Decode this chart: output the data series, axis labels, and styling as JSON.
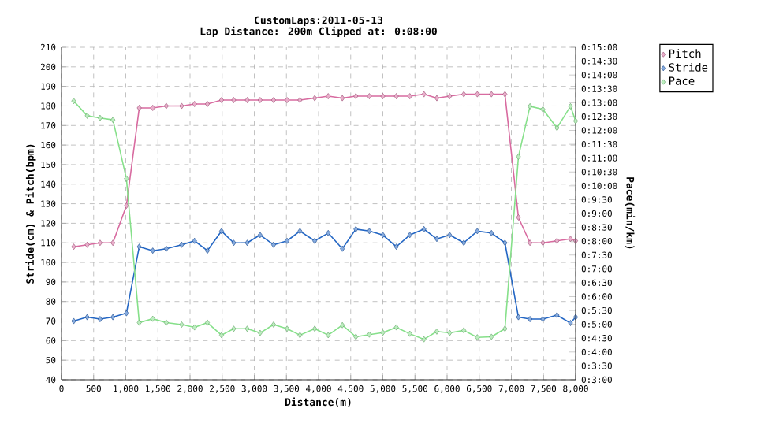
{
  "chart_data": {
    "type": "line",
    "title": "CustomLaps:2011-05-13",
    "subtitle": "Lap Distance: 200m Clipped at: 0:08:00",
    "xlabel": "Distance(m)",
    "ylabel": "Stride(cm) & Pitch(bpm)",
    "y2label": "Pace(min/km)",
    "x": [
      190,
      400,
      600,
      800,
      1010,
      1210,
      1420,
      1630,
      1870,
      2070,
      2270,
      2490,
      2680,
      2890,
      3090,
      3300,
      3510,
      3710,
      3940,
      4150,
      4370,
      4580,
      4790,
      5000,
      5210,
      5420,
      5640,
      5840,
      6040,
      6260,
      6470,
      6690,
      6900,
      7110,
      7290,
      7490,
      7710,
      7920,
      8000
    ],
    "series": [
      {
        "name": "Pitch",
        "color": "#d86ba0",
        "values": [
          108,
          109,
          110,
          110,
          129,
          179,
          179,
          180,
          180,
          181,
          181,
          183,
          183,
          183,
          183,
          183,
          183,
          183,
          184,
          185,
          184,
          185,
          185,
          185,
          185,
          185,
          186,
          184,
          185,
          186,
          186,
          186,
          186,
          123,
          110,
          110,
          111,
          112,
          111
        ]
      },
      {
        "name": "Stride",
        "color": "#2366c4",
        "values": [
          70,
          72,
          71,
          72,
          74,
          108,
          106,
          107,
          109,
          111,
          106,
          116,
          110,
          110,
          114,
          109,
          111,
          116,
          111,
          115,
          107,
          117,
          116,
          114,
          108,
          114,
          117,
          112,
          114,
          110,
          116,
          115,
          110,
          72,
          71,
          71,
          73,
          69,
          72
        ]
      },
      {
        "name": "Pace",
        "color": "#86e08a",
        "axis": "y2",
        "values": [
          13.06,
          12.53,
          12.45,
          12.38,
          10.26,
          5.06,
          5.2,
          5.06,
          4.99,
          4.89,
          5.06,
          4.61,
          4.84,
          4.84,
          4.69,
          4.99,
          4.84,
          4.61,
          4.84,
          4.61,
          4.97,
          4.55,
          4.63,
          4.7,
          4.89,
          4.66,
          4.46,
          4.74,
          4.69,
          4.78,
          4.53,
          4.55,
          4.84,
          11.05,
          12.87,
          12.76,
          12.09,
          12.87,
          12.34
        ]
      }
    ],
    "xlim": [
      0,
      8000
    ],
    "xticks": [
      0,
      500,
      {
        "value": 1000,
        "label": "1,000"
      },
      {
        "value": 1500,
        "label": "1,500"
      },
      {
        "value": 2000,
        "label": "2,000"
      },
      {
        "value": 2500,
        "label": "2,500"
      },
      {
        "value": 3000,
        "label": "3,000"
      },
      {
        "value": 3500,
        "label": "3,500"
      },
      {
        "value": 4000,
        "label": "4,000"
      },
      {
        "value": 4500,
        "label": "4,500"
      },
      {
        "value": 5000,
        "label": "5,000"
      },
      {
        "value": 5500,
        "label": "5,500"
      },
      {
        "value": 6000,
        "label": "6,000"
      },
      {
        "value": 6500,
        "label": "6,500"
      },
      {
        "value": 7000,
        "label": "7,000"
      },
      {
        "value": 7500,
        "label": "7,500"
      },
      {
        "value": 8000,
        "label": "8,000"
      }
    ],
    "ylim": [
      40,
      210
    ],
    "yticks": [
      40,
      50,
      60,
      70,
      80,
      90,
      100,
      110,
      120,
      130,
      140,
      150,
      160,
      170,
      180,
      190,
      200,
      210
    ],
    "y2lim": [
      3,
      15
    ],
    "y2ticks": [
      {
        "value": 3,
        "label": "0:3:00"
      },
      {
        "value": 3.5,
        "label": "0:3:30"
      },
      {
        "value": 4,
        "label": "0:4:00"
      },
      {
        "value": 4.5,
        "label": "0:4:30"
      },
      {
        "value": 5,
        "label": "0:5:00"
      },
      {
        "value": 5.5,
        "label": "0:5:30"
      },
      {
        "value": 6,
        "label": "0:6:00"
      },
      {
        "value": 6.5,
        "label": "0:6:30"
      },
      {
        "value": 7,
        "label": "0:7:00"
      },
      {
        "value": 7.5,
        "label": "0:7:30"
      },
      {
        "value": 8,
        "label": "0:8:00"
      },
      {
        "value": 8.5,
        "label": "0:8:30"
      },
      {
        "value": 9,
        "label": "0:9:00"
      },
      {
        "value": 9.5,
        "label": "0:9:30"
      },
      {
        "value": 10,
        "label": "0:10:00"
      },
      {
        "value": 10.5,
        "label": "0:10:30"
      },
      {
        "value": 11,
        "label": "0:11:00"
      },
      {
        "value": 11.5,
        "label": "0:11:30"
      },
      {
        "value": 12,
        "label": "0:12:00"
      },
      {
        "value": 12.5,
        "label": "0:12:30"
      },
      {
        "value": 13,
        "label": "0:13:00"
      },
      {
        "value": 13.5,
        "label": "0:13:30"
      },
      {
        "value": 14,
        "label": "0:14:00"
      },
      {
        "value": 14.5,
        "label": "0:14:30"
      },
      {
        "value": 15,
        "label": "0:15:00"
      }
    ],
    "grid": true,
    "legend": "top right",
    "marker": "diamond",
    "line_style": "solid"
  }
}
